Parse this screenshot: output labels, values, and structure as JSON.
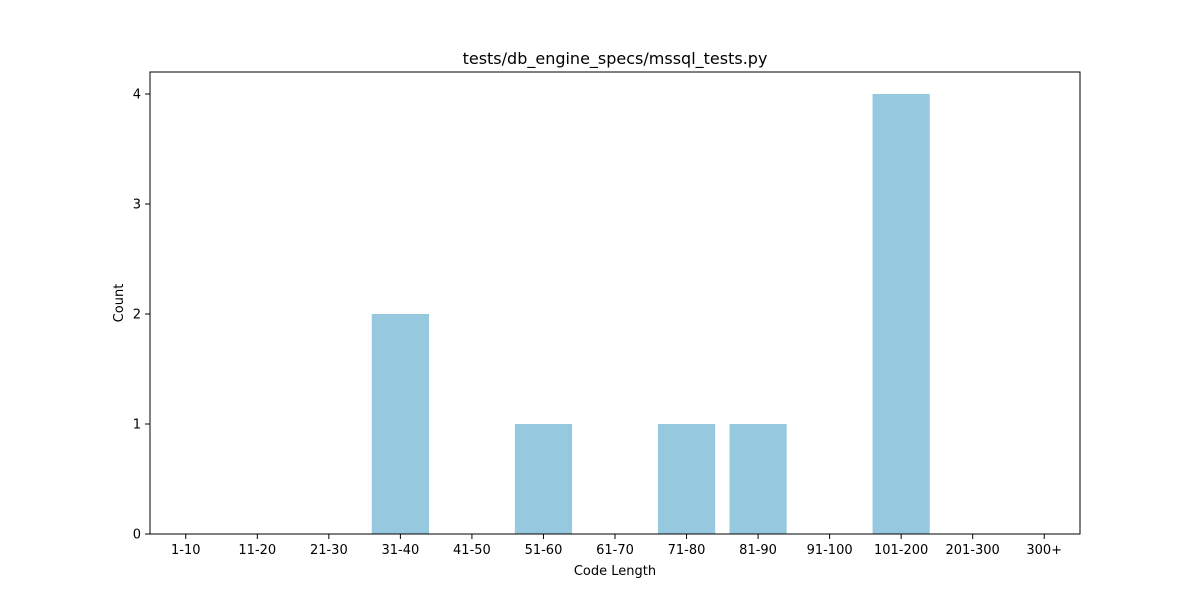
{
  "chart_data": {
    "type": "bar",
    "title": "tests/db_engine_specs/mssql_tests.py",
    "xlabel": "Code Length",
    "ylabel": "Count",
    "categories": [
      "1-10",
      "11-20",
      "21-30",
      "31-40",
      "41-50",
      "51-60",
      "61-70",
      "71-80",
      "81-90",
      "91-100",
      "101-200",
      "201-300",
      "300+"
    ],
    "values": [
      0,
      0,
      0,
      2,
      0,
      1,
      0,
      1,
      1,
      0,
      4,
      0,
      0
    ],
    "ylim": [
      0,
      4.2
    ],
    "yticks": [
      0,
      1,
      2,
      3,
      4
    ],
    "bar_color": "#96c9dd",
    "grid": false,
    "legend": "none"
  }
}
